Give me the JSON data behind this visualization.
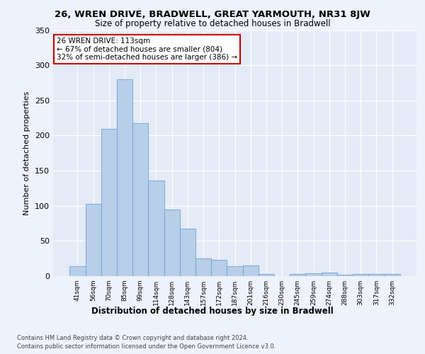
{
  "title1": "26, WREN DRIVE, BRADWELL, GREAT YARMOUTH, NR31 8JW",
  "title2": "Size of property relative to detached houses in Bradwell",
  "xlabel": "Distribution of detached houses by size in Bradwell",
  "ylabel": "Number of detached properties",
  "categories": [
    "41sqm",
    "56sqm",
    "70sqm",
    "85sqm",
    "99sqm",
    "114sqm",
    "128sqm",
    "143sqm",
    "157sqm",
    "172sqm",
    "187sqm",
    "201sqm",
    "216sqm",
    "230sqm",
    "245sqm",
    "259sqm",
    "274sqm",
    "288sqm",
    "303sqm",
    "317sqm",
    "332sqm"
  ],
  "values": [
    14,
    103,
    210,
    280,
    218,
    136,
    95,
    67,
    25,
    23,
    14,
    15,
    3,
    0,
    3,
    4,
    5,
    2,
    3,
    3,
    3
  ],
  "bar_color": "#b8cfe8",
  "highlight_index": 5,
  "annotation_text": "26 WREN DRIVE: 113sqm\n← 67% of detached houses are smaller (804)\n32% of semi-detached houses are larger (386) →",
  "annotation_box_facecolor": "#ffffff",
  "annotation_box_edgecolor": "#cc0000",
  "background_color": "#eef2fb",
  "plot_bg_color": "#e4eaf6",
  "grid_color": "#ffffff",
  "bar_edgecolor": "#6a9fd8",
  "ylim": [
    0,
    350
  ],
  "yticks": [
    0,
    50,
    100,
    150,
    200,
    250,
    300,
    350
  ],
  "footer1": "Contains HM Land Registry data © Crown copyright and database right 2024.",
  "footer2": "Contains public sector information licensed under the Open Government Licence v3.0."
}
